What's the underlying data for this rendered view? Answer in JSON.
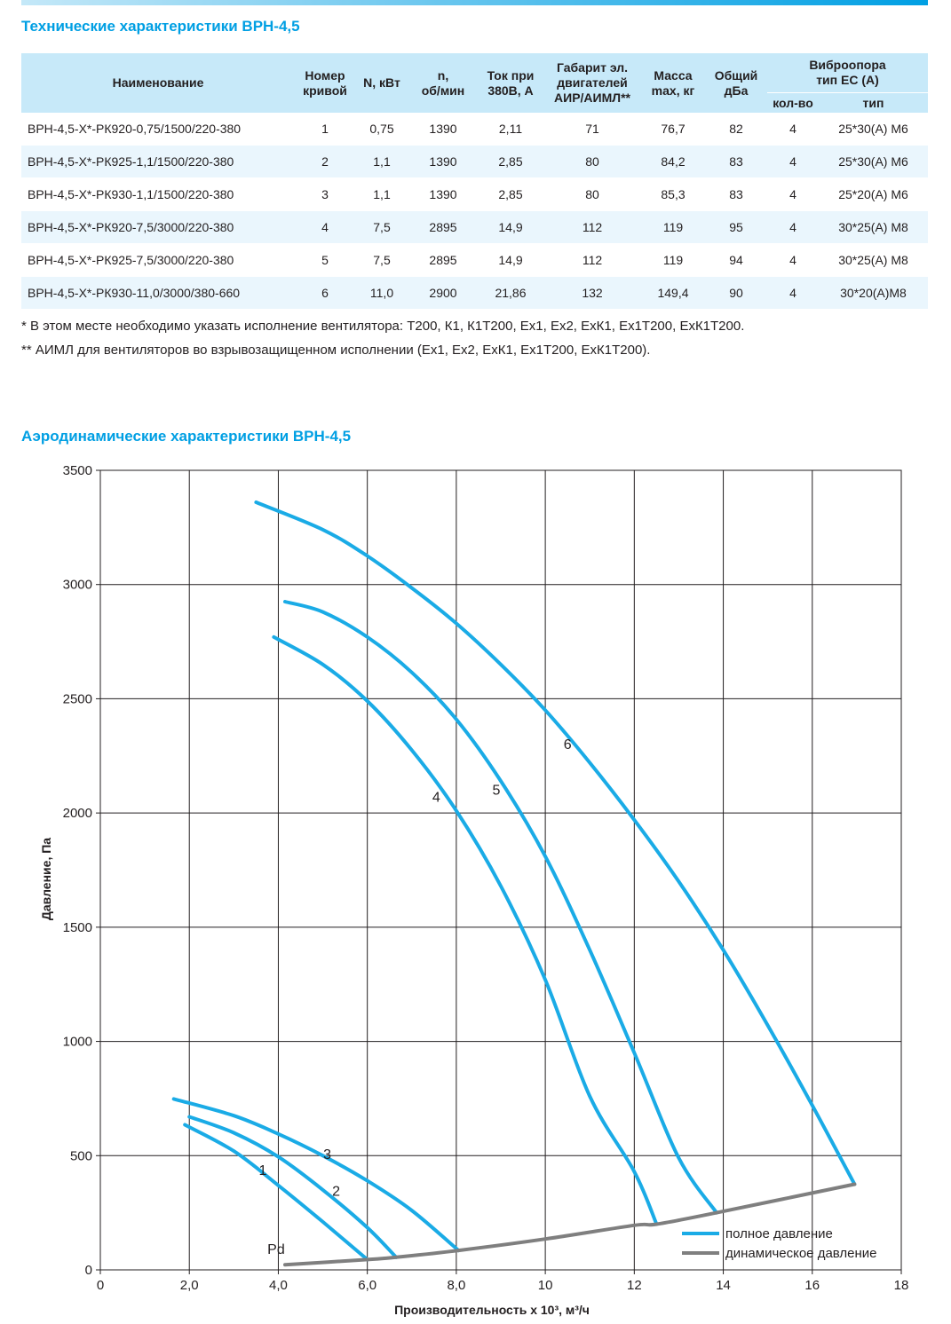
{
  "spec": {
    "title": "Технические характеристики ВРН-4,5",
    "headers": {
      "name": "Наименование",
      "curve": [
        "Номер",
        "кривой"
      ],
      "power": "N, кВт",
      "rpm": [
        "n,",
        "об/мин"
      ],
      "current": [
        "Ток при",
        "380В, А"
      ],
      "motor": [
        "Габарит эл.",
        "двигателей",
        "АИР/АИМЛ**"
      ],
      "mass": [
        "Масса",
        "max, кг"
      ],
      "noise": [
        "Общий",
        "дБа"
      ],
      "vibro": [
        "Виброопора",
        "тип ЕС (А)"
      ],
      "vibro_count": "кол-во",
      "vibro_type": "тип"
    },
    "rows": [
      {
        "name": "ВРН-4,5-Х*-РК920-0,75/1500/220-380",
        "curve": "1",
        "power": "0,75",
        "rpm": "1390",
        "current": "2,11",
        "motor": "71",
        "mass": "76,7",
        "noise": "82",
        "count": "4",
        "type": "25*30(А) М6"
      },
      {
        "name": "ВРН-4,5-Х*-РК925-1,1/1500/220-380",
        "curve": "2",
        "power": "1,1",
        "rpm": "1390",
        "current": "2,85",
        "motor": "80",
        "mass": "84,2",
        "noise": "83",
        "count": "4",
        "type": "25*30(А) М6"
      },
      {
        "name": "ВРН-4,5-Х*-РК930-1,1/1500/220-380",
        "curve": "3",
        "power": "1,1",
        "rpm": "1390",
        "current": "2,85",
        "motor": "80",
        "mass": "85,3",
        "noise": "83",
        "count": "4",
        "type": "25*20(А) М6"
      },
      {
        "name": "ВРН-4,5-Х*-РК920-7,5/3000/220-380",
        "curve": "4",
        "power": "7,5",
        "rpm": "2895",
        "current": "14,9",
        "motor": "112",
        "mass": "119",
        "noise": "95",
        "count": "4",
        "type": "30*25(А) М8"
      },
      {
        "name": "ВРН-4,5-Х*-РК925-7,5/3000/220-380",
        "curve": "5",
        "power": "7,5",
        "rpm": "2895",
        "current": "14,9",
        "motor": "112",
        "mass": "119",
        "noise": "94",
        "count": "4",
        "type": "30*25(А) М8"
      },
      {
        "name": "ВРН-4,5-Х*-РК930-11,0/3000/380-660",
        "curve": "6",
        "power": "11,0",
        "rpm": "2900",
        "current": "21,86",
        "motor": "132",
        "mass": "149,4",
        "noise": "90",
        "count": "4",
        "type": "30*20(А)М8"
      }
    ],
    "note1": "* В этом месте необходимо указать исполнение вентилятора: Т200, К1, К1Т200, Ех1, Ех2, ЕхК1, Ех1Т200, ЕхК1Т200.",
    "note2": "** АИМЛ для вентиляторов во взрывозащищенном исполнении (Ех1, Ех2, ЕхК1, Ех1Т200, ЕхК1Т200)."
  },
  "colors": {
    "accent": "#009fe3",
    "header_bg": "#c7e9f9",
    "row_alt": "#eaf6fd",
    "full_pressure": "#1aabe6",
    "dynamic_pressure": "#7f7f7f",
    "grid": "#231f20"
  },
  "chart_data": {
    "type": "line",
    "title": "Аэродинамические характеристики ВРН-4,5",
    "xlabel": "Производительность х 10³, м³/ч",
    "ylabel": "Давление, Па",
    "xlim": [
      0,
      18
    ],
    "ylim": [
      0,
      3500
    ],
    "x_ticks": [
      "0",
      "2,0",
      "4,0",
      "6,0",
      "8,0",
      "10",
      "12",
      "14",
      "16",
      "18"
    ],
    "y_ticks": [
      "0",
      "500",
      "1000",
      "1500",
      "2000",
      "2500",
      "3000",
      "3500"
    ],
    "grid": true,
    "legend_position": "bottom-right",
    "legend": [
      "полное давление",
      "динамическое давление"
    ],
    "series": [
      {
        "name": "1",
        "style": "full",
        "label_at": [
          3.65,
          415
        ],
        "x": [
          1.9,
          3.0,
          4.0,
          5.0,
          6.0
        ],
        "y": [
          635,
          520,
          370,
          210,
          45
        ]
      },
      {
        "name": "2",
        "style": "full",
        "label_at": [
          5.3,
          325
        ],
        "x": [
          2.0,
          3.0,
          4.0,
          5.0,
          6.0,
          6.65
        ],
        "y": [
          670,
          600,
          495,
          350,
          185,
          55
        ]
      },
      {
        "name": "3",
        "style": "full",
        "label_at": [
          5.1,
          485
        ],
        "x": [
          1.65,
          3.0,
          4.0,
          5.0,
          6.0,
          7.0,
          8.05
        ],
        "y": [
          748,
          675,
          595,
          500,
          390,
          260,
          85
        ]
      },
      {
        "name": "4",
        "style": "full",
        "label_at": [
          7.55,
          2050
        ],
        "x": [
          3.9,
          5.0,
          6.0,
          7.0,
          8.0,
          9.0,
          10.0,
          11.0,
          12.0,
          12.5
        ],
        "y": [
          2770,
          2650,
          2490,
          2275,
          2010,
          1680,
          1270,
          760,
          430,
          200
        ]
      },
      {
        "name": "5",
        "style": "full",
        "label_at": [
          8.9,
          2080
        ],
        "x": [
          4.15,
          5.0,
          6.0,
          7.0,
          8.0,
          9.0,
          10.0,
          11.0,
          12.0,
          13.0,
          13.85
        ],
        "y": [
          2925,
          2880,
          2770,
          2615,
          2410,
          2140,
          1810,
          1400,
          950,
          490,
          250
        ]
      },
      {
        "name": "6",
        "style": "full",
        "label_at": [
          10.5,
          2280
        ],
        "x": [
          3.5,
          5.0,
          6.0,
          7.0,
          8.0,
          9.0,
          10.0,
          11.0,
          12.0,
          13.0,
          14.0,
          15.0,
          16.0,
          16.95
        ],
        "y": [
          3360,
          3240,
          3125,
          2985,
          2830,
          2650,
          2450,
          2220,
          1970,
          1700,
          1400,
          1070,
          720,
          375
        ]
      },
      {
        "name": "Pd",
        "style": "dynamic",
        "label_at": [
          3.95,
          70
        ],
        "x": [
          4.15,
          6.0,
          6.65,
          8.05,
          10.0,
          12.0,
          12.5,
          13.85,
          16.95
        ],
        "y": [
          22,
          45,
          55,
          85,
          135,
          195,
          200,
          250,
          375
        ]
      }
    ]
  }
}
